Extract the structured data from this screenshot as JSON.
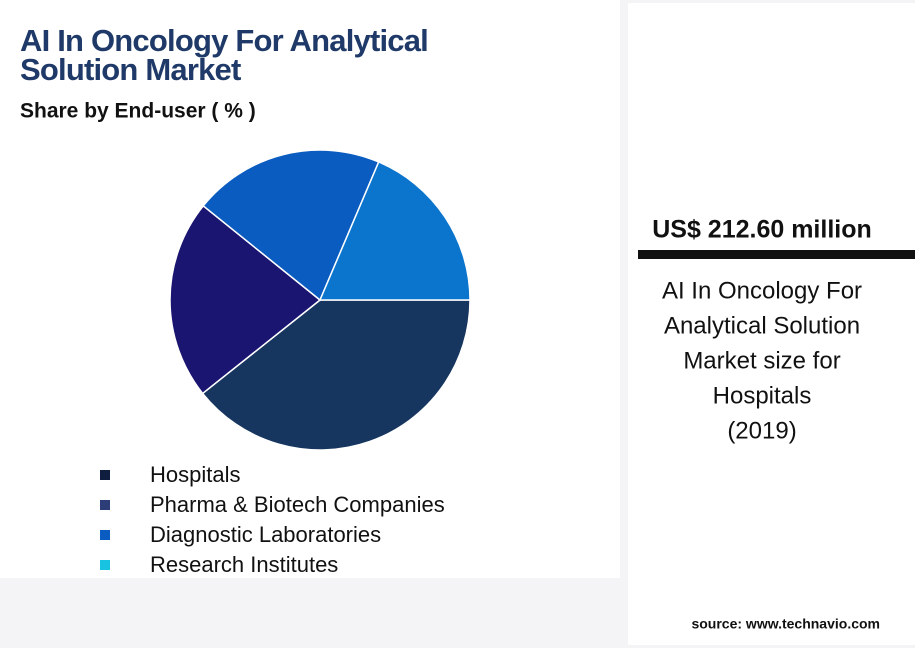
{
  "chart_data": {
    "type": "pie",
    "title": [
      "AI In Oncology For Analytical",
      "Solution Market"
    ],
    "subtitle": "Share by End-user ( % )",
    "categories": [
      "Hospitals",
      "Pharma & Biotech Companies",
      "Diagnostic Laboratories",
      "Research Institutes"
    ],
    "values": [
      39.3,
      21.5,
      20.6,
      18.6
    ],
    "colors": [
      "#17365f",
      "#1a1570",
      "#0a5cc0",
      "#0b74cc"
    ],
    "legend_colors": [
      "#0f1d3f",
      "#2d3d78",
      "#0a5cc0",
      "#17c3e0"
    ],
    "highlight": {
      "value_text": "US$ 212.60 million",
      "description": [
        "AI In Oncology For",
        "Analytical Solution",
        "Market size for",
        "Hospitals",
        "(2019)"
      ]
    },
    "source": "source: www.technavio.com"
  }
}
